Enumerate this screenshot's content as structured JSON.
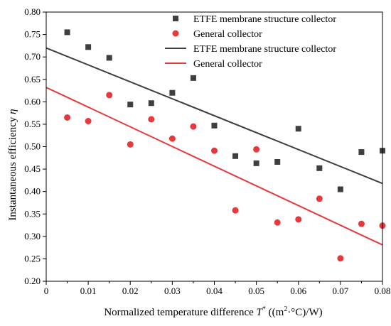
{
  "chart_data": {
    "type": "scatter",
    "xlabel": "Normalized temperature difference",
    "xlabel_symbol": "T",
    "xlabel_sup": "*",
    "xlabel_unit_open": " ((m",
    "xlabel_unit_sup": "2",
    "xlabel_unit_close": "·°C)/W)",
    "ylabel": "Instantaneous efficiency",
    "ylabel_symbol": "η",
    "xlim": [
      0,
      0.08
    ],
    "ylim": [
      0.2,
      0.8
    ],
    "xticks": [
      "0",
      "0.01",
      "0.02",
      "0.03",
      "0.04",
      "0.05",
      "0.06",
      "0.07",
      "0.08"
    ],
    "yticks": [
      "0.20",
      "0.25",
      "0.30",
      "0.35",
      "0.40",
      "0.45",
      "0.50",
      "0.55",
      "0.60",
      "0.65",
      "0.70",
      "0.75",
      "0.80"
    ],
    "grid": false,
    "legend_position": "top-right",
    "series": [
      {
        "name": "ETFE membrane structure collector",
        "kind": "scatter",
        "marker": "square",
        "color": "#3f3f3f",
        "x": [
          0.005,
          0.01,
          0.015,
          0.02,
          0.025,
          0.03,
          0.035,
          0.04,
          0.045,
          0.05,
          0.055,
          0.06,
          0.065,
          0.07,
          0.075,
          0.08
        ],
        "y": [
          0.755,
          0.722,
          0.698,
          0.594,
          0.597,
          0.62,
          0.653,
          0.547,
          0.479,
          0.463,
          0.466,
          0.54,
          0.452,
          0.405,
          0.488,
          0.491
        ]
      },
      {
        "name": "General collector",
        "kind": "scatter",
        "marker": "circle",
        "color": "#e8383b",
        "x": [
          0.005,
          0.01,
          0.015,
          0.02,
          0.025,
          0.03,
          0.035,
          0.04,
          0.045,
          0.05,
          0.055,
          0.06,
          0.065,
          0.07,
          0.075,
          0.08
        ],
        "y": [
          0.565,
          0.557,
          0.615,
          0.505,
          0.561,
          0.518,
          0.545,
          0.491,
          0.358,
          0.494,
          0.331,
          0.338,
          0.384,
          0.251,
          0.328,
          0.324
        ]
      },
      {
        "name": "ETFE membrane structure collector",
        "kind": "line",
        "color": "#3f3f3f",
        "x": [
          0,
          0.08
        ],
        "y": [
          0.72,
          0.418
        ]
      },
      {
        "name": "General collector",
        "kind": "line",
        "color": "#e8383b",
        "x": [
          0,
          0.08
        ],
        "y": [
          0.632,
          0.281
        ]
      }
    ]
  }
}
